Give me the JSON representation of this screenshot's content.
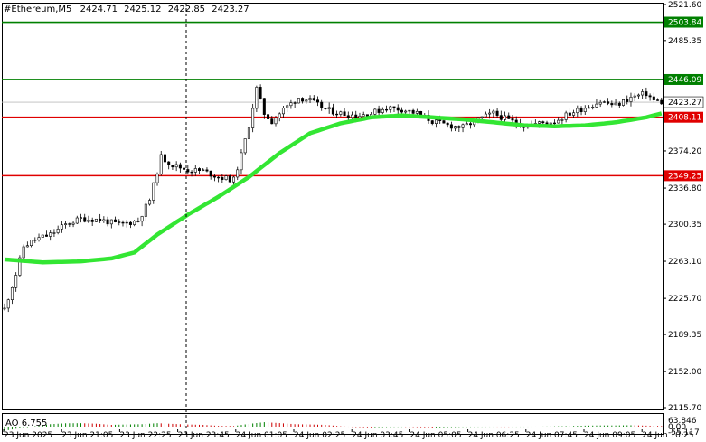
{
  "header": {
    "symbol": "#Ethereum,M5",
    "open": "2424.71",
    "high": "2425.12",
    "low": "2422.85",
    "close": "2423.27"
  },
  "ao_label": "AO 6.755",
  "colors": {
    "background": "#ffffff",
    "candle": "#000000",
    "ma": "#33e633",
    "level_red": "#e00000",
    "level_green": "#008000",
    "ao_up": "#008000",
    "ao_down": "#cc0000"
  },
  "chart_data": [
    {
      "type": "candlestick",
      "title": "#Ethereum,M5",
      "y_axis_labels": [
        "2521.60",
        "2485.35",
        "2446.09",
        "2408.11",
        "2374.20",
        "2336.80",
        "2300.35",
        "2263.10",
        "2225.70",
        "2189.35",
        "2152.00",
        "2115.70"
      ],
      "ylim": [
        2115.7,
        2521.6
      ],
      "x_axis_labels": [
        "23 Jun 2025",
        "23 Jun 21:05",
        "23 Jun 22:25",
        "23 Jun 23:45",
        "24 Jun 01:05",
        "24 Jun 02:25",
        "24 Jun 03:45",
        "24 Jun 05:05",
        "24 Jun 06:25",
        "24 Jun 07:45",
        "24 Jun 09:05",
        "24 Jun 10:25"
      ],
      "current_price": "2423.27",
      "levels": [
        {
          "label": "2503.84",
          "price": 2503.84,
          "color": "green"
        },
        {
          "label": "2446.09",
          "price": 2446.09,
          "color": "green"
        },
        {
          "label": "2408.11",
          "price": 2408.11,
          "color": "red"
        },
        {
          "label": "2349.25",
          "price": 2349.25,
          "color": "red"
        }
      ],
      "close_path": [
        [
          0,
          2215
        ],
        [
          3,
          2250
        ],
        [
          5,
          2278
        ],
        [
          8,
          2285
        ],
        [
          12,
          2290
        ],
        [
          16,
          2300
        ],
        [
          20,
          2306
        ],
        [
          25,
          2305
        ],
        [
          30,
          2300
        ],
        [
          35,
          2304
        ],
        [
          38,
          2325
        ],
        [
          41,
          2368
        ],
        [
          44,
          2360
        ],
        [
          48,
          2355
        ],
        [
          52,
          2354
        ],
        [
          56,
          2348
        ],
        [
          60,
          2345
        ],
        [
          62,
          2370
        ],
        [
          64,
          2400
        ],
        [
          66,
          2437
        ],
        [
          68,
          2412
        ],
        [
          70,
          2404
        ],
        [
          73,
          2416
        ],
        [
          77,
          2428
        ],
        [
          80,
          2425
        ],
        [
          84,
          2416
        ],
        [
          88,
          2412
        ],
        [
          92,
          2410
        ],
        [
          96,
          2412
        ],
        [
          100,
          2418
        ],
        [
          104,
          2416
        ],
        [
          108,
          2412
        ],
        [
          112,
          2404
        ],
        [
          116,
          2400
        ],
        [
          120,
          2398
        ],
        [
          124,
          2406
        ],
        [
          128,
          2412
        ],
        [
          132,
          2405
        ],
        [
          136,
          2400
        ],
        [
          140,
          2402
        ],
        [
          144,
          2404
        ],
        [
          148,
          2412
        ],
        [
          152,
          2418
        ],
        [
          156,
          2424
        ],
        [
          160,
          2420
        ],
        [
          164,
          2428
        ],
        [
          168,
          2432
        ],
        [
          170,
          2425
        ],
        [
          172,
          2423.27
        ]
      ],
      "ma_path": [
        [
          0,
          2265
        ],
        [
          10,
          2262
        ],
        [
          20,
          2263
        ],
        [
          28,
          2266
        ],
        [
          34,
          2272
        ],
        [
          40,
          2290
        ],
        [
          48,
          2310
        ],
        [
          56,
          2328
        ],
        [
          64,
          2348
        ],
        [
          72,
          2372
        ],
        [
          80,
          2392
        ],
        [
          88,
          2402
        ],
        [
          96,
          2408
        ],
        [
          104,
          2410
        ],
        [
          112,
          2408
        ],
        [
          120,
          2406
        ],
        [
          128,
          2403
        ],
        [
          136,
          2400
        ],
        [
          144,
          2399
        ],
        [
          152,
          2400
        ],
        [
          160,
          2403
        ],
        [
          168,
          2408
        ],
        [
          172,
          2412
        ]
      ],
      "ao_pane": {
        "label": "AO 6.755",
        "y_axis_labels": [
          "63.846",
          "0.00",
          "-55.117"
        ],
        "ylim": [
          -55.117,
          63.846
        ],
        "envelope": [
          [
            0,
            -42
          ],
          [
            4,
            -15
          ],
          [
            8,
            5
          ],
          [
            12,
            25
          ],
          [
            16,
            34
          ],
          [
            20,
            35
          ],
          [
            24,
            30
          ],
          [
            28,
            18
          ],
          [
            32,
            22
          ],
          [
            36,
            25
          ],
          [
            40,
            35
          ],
          [
            44,
            28
          ],
          [
            48,
            22
          ],
          [
            52,
            18
          ],
          [
            56,
            8
          ],
          [
            60,
            6
          ],
          [
            64,
            28
          ],
          [
            68,
            45
          ],
          [
            72,
            36
          ],
          [
            76,
            25
          ],
          [
            80,
            22
          ],
          [
            84,
            18
          ],
          [
            88,
            4
          ],
          [
            92,
            -5
          ],
          [
            96,
            -8
          ],
          [
            100,
            -4
          ],
          [
            104,
            -2
          ],
          [
            108,
            -5
          ],
          [
            112,
            -9
          ],
          [
            116,
            -6
          ],
          [
            120,
            -3
          ],
          [
            124,
            -2
          ],
          [
            128,
            -1
          ],
          [
            132,
            -2
          ],
          [
            136,
            -1
          ],
          [
            140,
            0
          ],
          [
            144,
            3
          ],
          [
            148,
            6
          ],
          [
            152,
            10
          ],
          [
            156,
            12
          ],
          [
            160,
            12
          ],
          [
            164,
            14
          ],
          [
            168,
            10
          ],
          [
            172,
            6.755
          ]
        ]
      }
    }
  ]
}
